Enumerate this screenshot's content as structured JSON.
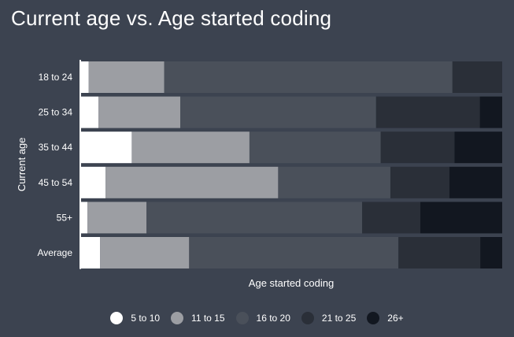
{
  "chart_data": {
    "type": "bar",
    "orientation": "horizontal",
    "stacked": "percent",
    "title": "Current age vs. Age started coding",
    "xlabel": "Age started coding",
    "ylabel": "Current age",
    "categories": [
      "18 to 24",
      "25 to 34",
      "35 to 44",
      "45 to 54",
      "55+",
      "Average"
    ],
    "xlim": [
      0,
      100
    ],
    "grid": false,
    "legend_position": "bottom",
    "series": [
      {
        "name": "5 to 10",
        "color": "#ffffff",
        "values": [
          2.0,
          4.3,
          12.2,
          6.0,
          1.7,
          4.7
        ]
      },
      {
        "name": "11 to 15",
        "color": "#9c9ea3",
        "values": [
          17.9,
          19.4,
          27.9,
          40.9,
          14.0,
          21.1
        ]
      },
      {
        "name": "16 to 20",
        "color": "#4a505a",
        "values": [
          68.3,
          46.4,
          31.1,
          26.6,
          51.1,
          49.6
        ]
      },
      {
        "name": "21 to 25",
        "color": "#2a2f38",
        "values": [
          11.8,
          24.6,
          17.5,
          14.0,
          13.8,
          19.4
        ]
      },
      {
        "name": "26+",
        "color": "#121720",
        "values": [
          0.0,
          5.3,
          11.3,
          12.5,
          19.4,
          5.2
        ]
      }
    ]
  }
}
